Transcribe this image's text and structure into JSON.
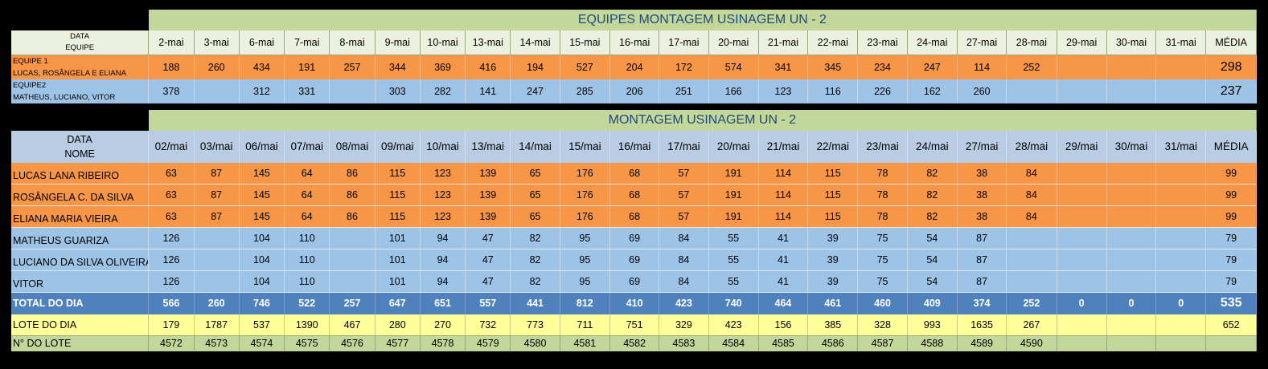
{
  "colors": {
    "orange": "#f79646",
    "blue": "#9dc3e6",
    "header": "#c4d79b",
    "total": "#4f81bd",
    "lote": "#ffff99"
  },
  "section1": {
    "title": "EQUIPES MONTAGEM USINAGEM UN - 2",
    "corner_top": "DATA",
    "corner_bottom": "EQUIPE",
    "dates": [
      "2-mai",
      "3-mai",
      "6-mai",
      "7-mai",
      "8-mai",
      "9-mai",
      "10-mai",
      "13-mai",
      "14-mai",
      "15-mai",
      "16-mai",
      "17-mai",
      "20-mai",
      "21-mai",
      "22-mai",
      "23-mai",
      "24-mai",
      "27-mai",
      "28-mai",
      "29-mai",
      "30-mai",
      "31-mai"
    ],
    "avg_label": "MÉDIA",
    "teams": [
      {
        "line1": "EQUIPE 1",
        "line2": "LUCAS, ROSÂNGELA E ELIANA",
        "color": "orange",
        "values": [
          "188",
          "260",
          "434",
          "191",
          "257",
          "344",
          "369",
          "416",
          "194",
          "527",
          "204",
          "172",
          "574",
          "341",
          "345",
          "234",
          "247",
          "114",
          "252",
          "",
          "",
          ""
        ],
        "avg": "298"
      },
      {
        "line1": "EQUIPE2",
        "line2": "MATHEUS, LUCIANO, VITOR",
        "color": "blue",
        "values": [
          "378",
          "",
          "312",
          "331",
          "",
          "303",
          "282",
          "141",
          "247",
          "285",
          "206",
          "251",
          "166",
          "123",
          "116",
          "226",
          "162",
          "260",
          "",
          "",
          "",
          ""
        ],
        "avg": "237"
      }
    ]
  },
  "section2": {
    "title": "MONTAGEM USINAGEM UN - 2",
    "corner_top": "DATA",
    "corner_bottom": "NOME",
    "dates": [
      "02/mai",
      "03/mai",
      "06/mai",
      "07/mai",
      "08/mai",
      "09/mai",
      "10/mai",
      "13/mai",
      "14/mai",
      "15/mai",
      "16/mai",
      "17/mai",
      "20/mai",
      "21/mai",
      "22/mai",
      "23/mai",
      "24/mai",
      "27/mai",
      "28/mai",
      "29/mai",
      "30/mai",
      "31/mai"
    ],
    "avg_label": "MÉDIA",
    "people": [
      {
        "name": "LUCAS LANA RIBEIRO",
        "color": "orange",
        "values": [
          "63",
          "87",
          "145",
          "64",
          "86",
          "115",
          "123",
          "139",
          "65",
          "176",
          "68",
          "57",
          "191",
          "114",
          "115",
          "78",
          "82",
          "38",
          "84",
          "",
          "",
          ""
        ],
        "avg": "99"
      },
      {
        "name": "ROSÂNGELA C. DA SILVA",
        "color": "orange",
        "values": [
          "63",
          "87",
          "145",
          "64",
          "86",
          "115",
          "123",
          "139",
          "65",
          "176",
          "68",
          "57",
          "191",
          "114",
          "115",
          "78",
          "82",
          "38",
          "84",
          "",
          "",
          ""
        ],
        "avg": "99"
      },
      {
        "name": "ELIANA MARIA VIEIRA",
        "color": "orange",
        "values": [
          "63",
          "87",
          "145",
          "64",
          "86",
          "115",
          "123",
          "139",
          "65",
          "176",
          "68",
          "57",
          "191",
          "114",
          "115",
          "78",
          "82",
          "38",
          "84",
          "",
          "",
          ""
        ],
        "avg": "99"
      },
      {
        "name": "MATHEUS GUARIZA",
        "color": "blue",
        "values": [
          "126",
          "",
          "104",
          "110",
          "",
          "101",
          "94",
          "47",
          "82",
          "95",
          "69",
          "84",
          "55",
          "41",
          "39",
          "75",
          "54",
          "87",
          "",
          "",
          "",
          ""
        ],
        "avg": "79"
      },
      {
        "name": "LUCIANO DA SILVA OLIVEIRA",
        "color": "blue",
        "values": [
          "126",
          "",
          "104",
          "110",
          "",
          "101",
          "94",
          "47",
          "82",
          "95",
          "69",
          "84",
          "55",
          "41",
          "39",
          "75",
          "54",
          "87",
          "",
          "",
          "",
          ""
        ],
        "avg": "79"
      },
      {
        "name": "VITOR",
        "color": "blue",
        "values": [
          "126",
          "",
          "104",
          "110",
          "",
          "101",
          "94",
          "47",
          "82",
          "95",
          "69",
          "84",
          "55",
          "41",
          "39",
          "75",
          "54",
          "87",
          "",
          "",
          "",
          ""
        ],
        "avg": "79"
      }
    ],
    "total": {
      "label": "TOTAL DO DIA",
      "values": [
        "566",
        "260",
        "746",
        "522",
        "257",
        "647",
        "651",
        "557",
        "441",
        "812",
        "410",
        "423",
        "740",
        "464",
        "461",
        "460",
        "409",
        "374",
        "252",
        "0",
        "0",
        "0"
      ],
      "avg": "535"
    },
    "lote": {
      "label": "LOTE DO DIA",
      "values": [
        "179",
        "1787",
        "537",
        "1390",
        "467",
        "280",
        "270",
        "732",
        "773",
        "711",
        "751",
        "329",
        "423",
        "156",
        "385",
        "328",
        "993",
        "1635",
        "267",
        "",
        "",
        ""
      ],
      "avg": "652"
    },
    "nlote": {
      "label": "N° DO LOTE",
      "values": [
        "4572",
        "4573",
        "4574",
        "4575",
        "4576",
        "4577",
        "4578",
        "4579",
        "4580",
        "4581",
        "4582",
        "4583",
        "4584",
        "4585",
        "4586",
        "4587",
        "4588",
        "4589",
        "4590",
        "",
        "",
        ""
      ],
      "avg": ""
    }
  }
}
